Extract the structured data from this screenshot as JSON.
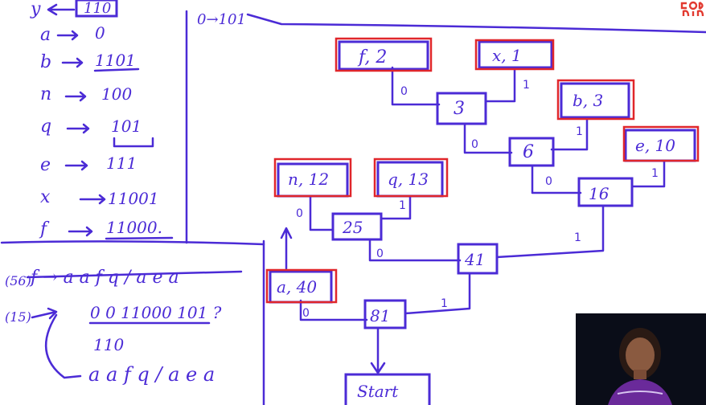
{
  "colors": {
    "ink": "#4b2bd6",
    "highlight": "#e0262b",
    "webcam_bg": "#0a0d18",
    "logo": "#e23a30"
  },
  "top_note": "0→101",
  "codes": {
    "y": "110",
    "rows": [
      {
        "sym": "a",
        "code": "0"
      },
      {
        "sym": "b",
        "code": "1101"
      },
      {
        "sym": "n",
        "code": "100"
      },
      {
        "sym": "q",
        "code": "101"
      },
      {
        "sym": "e",
        "code": "111"
      },
      {
        "sym": "x",
        "code": "11001"
      },
      {
        "sym": "f",
        "code": "11000."
      }
    ]
  },
  "lower": {
    "count_56": "(56)",
    "line1": "f → a a f q / a e a",
    "count_15": "(15)",
    "line2a": "0 0 11000 101 ?",
    "line2b": "110",
    "line3": "a a f q / a e a"
  },
  "tree": {
    "leaves": {
      "f": "f, 2",
      "x": "x, 1",
      "b": "b, 3",
      "e": "e, 10",
      "n": "n, 12",
      "q": "q, 13",
      "a": "a, 40"
    },
    "internal": {
      "n3": "3",
      "n6": "6",
      "n16": "16",
      "n25": "25",
      "n41": "41",
      "n81": "81",
      "start": "Start"
    },
    "edge_labels": {
      "f3": "0",
      "x3": "1",
      "b6": "1",
      "n3to6": "0",
      "n6to16": "0",
      "e16": "1",
      "q25": "1",
      "n25": "0",
      "n25to41": "0",
      "n16to41": "1",
      "a81": "0",
      "n41to81": "1"
    }
  },
  "webcam": {
    "icon": "presenter-webcam"
  },
  "logo": {
    "icon": "brand-logo-corner"
  }
}
